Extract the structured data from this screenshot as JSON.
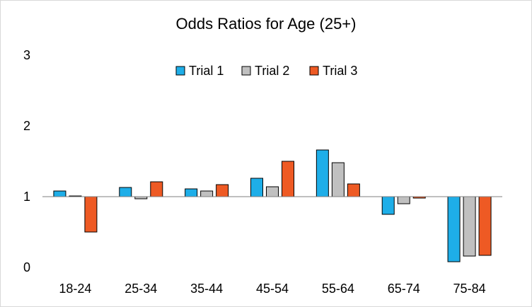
{
  "chart_data": {
    "type": "bar",
    "title": "Odds Ratios for Age (25+)",
    "xlabel": "",
    "ylabel": "",
    "categories": [
      "18-24",
      "25-34",
      "35-44",
      "45-54",
      "55-64",
      "65-74",
      "75-84"
    ],
    "y_ticks": [
      "0",
      "1",
      "2",
      "3"
    ],
    "ylim": [
      0,
      3
    ],
    "baseline": 1,
    "grid": false,
    "legend_position": "top",
    "series": [
      {
        "name": "Trial 1",
        "color": "#1EAEE8",
        "values": [
          1.08,
          1.13,
          1.11,
          1.26,
          1.66,
          0.75,
          0.08
        ]
      },
      {
        "name": "Trial 2",
        "color": "#C0C0C0",
        "values": [
          1.01,
          0.97,
          1.08,
          1.14,
          1.48,
          0.9,
          0.16
        ]
      },
      {
        "name": "Trial 3",
        "color": "#EE5A24",
        "values": [
          0.5,
          1.21,
          1.17,
          1.5,
          1.18,
          0.98,
          0.17
        ]
      }
    ]
  }
}
